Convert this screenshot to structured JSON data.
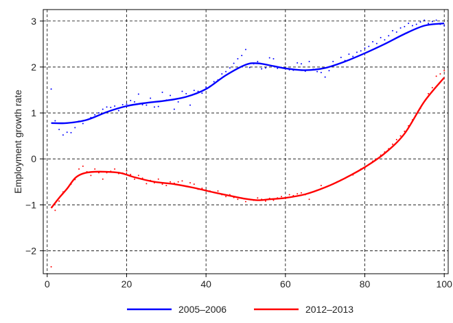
{
  "chart_data": {
    "type": "line",
    "title": "",
    "xlabel": "",
    "ylabel": "Employment growth rate",
    "xlim": [
      -1,
      101
    ],
    "ylim": [
      -2.5,
      3.25
    ],
    "x_ticks": [
      0,
      20,
      40,
      60,
      80,
      100
    ],
    "y_ticks": [
      -2,
      -1,
      0,
      1,
      2,
      3
    ],
    "grid": true,
    "legend_position": "bottom",
    "series": [
      {
        "name": "2005–2006",
        "color": "#0000ff",
        "smooth": [
          [
            1,
            0.78
          ],
          [
            5,
            0.78
          ],
          [
            10,
            0.85
          ],
          [
            15,
            1.02
          ],
          [
            20,
            1.15
          ],
          [
            25,
            1.22
          ],
          [
            30,
            1.27
          ],
          [
            35,
            1.35
          ],
          [
            40,
            1.52
          ],
          [
            45,
            1.82
          ],
          [
            50,
            2.05
          ],
          [
            53,
            2.08
          ],
          [
            57,
            2.02
          ],
          [
            60,
            1.97
          ],
          [
            65,
            1.93
          ],
          [
            70,
            1.98
          ],
          [
            75,
            2.12
          ],
          [
            80,
            2.3
          ],
          [
            85,
            2.5
          ],
          [
            90,
            2.72
          ],
          [
            95,
            2.9
          ],
          [
            100,
            2.95
          ]
        ],
        "points": [
          [
            1,
            1.52
          ],
          [
            2,
            0.83
          ],
          [
            3,
            0.64
          ],
          [
            4,
            0.52
          ],
          [
            5,
            0.58
          ],
          [
            6,
            0.57
          ],
          [
            7,
            0.68
          ],
          [
            8,
            0.82
          ],
          [
            9,
            0.77
          ],
          [
            10,
            0.85
          ],
          [
            11,
            0.9
          ],
          [
            12,
            0.96
          ],
          [
            13,
            1.0
          ],
          [
            14,
            1.08
          ],
          [
            15,
            1.13
          ],
          [
            16,
            1.12
          ],
          [
            17,
            1.15
          ],
          [
            18,
            1.05
          ],
          [
            19,
            1.18
          ],
          [
            20,
            1.19
          ],
          [
            21,
            1.27
          ],
          [
            22,
            1.24
          ],
          [
            23,
            1.41
          ],
          [
            24,
            1.18
          ],
          [
            25,
            1.17
          ],
          [
            26,
            1.32
          ],
          [
            27,
            1.13
          ],
          [
            28,
            1.14
          ],
          [
            29,
            1.45
          ],
          [
            30,
            1.28
          ],
          [
            31,
            1.38
          ],
          [
            32,
            1.08
          ],
          [
            33,
            1.24
          ],
          [
            34,
            1.47
          ],
          [
            35,
            1.42
          ],
          [
            36,
            1.17
          ],
          [
            37,
            1.49
          ],
          [
            38,
            1.47
          ],
          [
            39,
            1.43
          ],
          [
            40,
            1.56
          ],
          [
            41,
            1.58
          ],
          [
            42,
            1.68
          ],
          [
            43,
            1.72
          ],
          [
            44,
            1.85
          ],
          [
            45,
            1.9
          ],
          [
            46,
            1.98
          ],
          [
            47,
            2.08
          ],
          [
            48,
            2.18
          ],
          [
            49,
            2.25
          ],
          [
            50,
            2.38
          ],
          [
            51,
            1.99
          ],
          [
            52,
            2.07
          ],
          [
            53,
            2.12
          ],
          [
            54,
            1.96
          ],
          [
            55,
            1.98
          ],
          [
            56,
            2.2
          ],
          [
            57,
            2.18
          ],
          [
            58,
            1.97
          ],
          [
            59,
            1.99
          ],
          [
            60,
            1.96
          ],
          [
            61,
            1.94
          ],
          [
            62,
            1.93
          ],
          [
            63,
            2.09
          ],
          [
            64,
            2.07
          ],
          [
            65,
            1.91
          ],
          [
            66,
            2.12
          ],
          [
            67,
            1.95
          ],
          [
            68,
            1.9
          ],
          [
            69,
            1.88
          ],
          [
            70,
            1.78
          ],
          [
            71,
            1.92
          ],
          [
            72,
            2.12
          ],
          [
            73,
            2.05
          ],
          [
            74,
            2.21
          ],
          [
            75,
            2.14
          ],
          [
            76,
            2.28
          ],
          [
            77,
            2.23
          ],
          [
            78,
            2.32
          ],
          [
            79,
            2.35
          ],
          [
            80,
            2.41
          ],
          [
            81,
            2.45
          ],
          [
            82,
            2.55
          ],
          [
            83,
            2.51
          ],
          [
            84,
            2.64
          ],
          [
            85,
            2.59
          ],
          [
            86,
            2.68
          ],
          [
            87,
            2.79
          ],
          [
            88,
            2.76
          ],
          [
            89,
            2.85
          ],
          [
            90,
            2.88
          ],
          [
            91,
            2.95
          ],
          [
            92,
            2.9
          ],
          [
            93,
            2.93
          ],
          [
            94,
            2.98
          ],
          [
            95,
            3.02
          ],
          [
            96,
            2.95
          ],
          [
            97,
            2.99
          ],
          [
            98,
            3.02
          ],
          [
            99,
            2.93
          ],
          [
            100,
            2.9
          ]
        ]
      },
      {
        "name": "2012–2013",
        "color": "#ff0000",
        "smooth": [
          [
            1,
            -1.07
          ],
          [
            3,
            -0.85
          ],
          [
            5,
            -0.65
          ],
          [
            7,
            -0.42
          ],
          [
            9,
            -0.32
          ],
          [
            12,
            -0.28
          ],
          [
            18,
            -0.3
          ],
          [
            22,
            -0.4
          ],
          [
            27,
            -0.5
          ],
          [
            32,
            -0.55
          ],
          [
            37,
            -0.63
          ],
          [
            42,
            -0.73
          ],
          [
            47,
            -0.82
          ],
          [
            50,
            -0.87
          ],
          [
            53,
            -0.9
          ],
          [
            56,
            -0.88
          ],
          [
            60,
            -0.85
          ],
          [
            65,
            -0.77
          ],
          [
            70,
            -0.62
          ],
          [
            75,
            -0.42
          ],
          [
            80,
            -0.18
          ],
          [
            85,
            0.12
          ],
          [
            90,
            0.55
          ],
          [
            95,
            1.25
          ],
          [
            100,
            1.77
          ]
        ],
        "points": [
          [
            1,
            -2.35
          ],
          [
            2,
            -1.12
          ],
          [
            3,
            -0.92
          ],
          [
            4,
            -0.72
          ],
          [
            5,
            -0.65
          ],
          [
            6,
            -0.55
          ],
          [
            7,
            -0.45
          ],
          [
            8,
            -0.22
          ],
          [
            9,
            -0.16
          ],
          [
            10,
            -0.28
          ],
          [
            11,
            -0.36
          ],
          [
            12,
            -0.22
          ],
          [
            13,
            -0.3
          ],
          [
            14,
            -0.44
          ],
          [
            15,
            -0.3
          ],
          [
            16,
            -0.27
          ],
          [
            17,
            -0.22
          ],
          [
            18,
            -0.32
          ],
          [
            19,
            -0.31
          ],
          [
            20,
            -0.26
          ],
          [
            21,
            -0.34
          ],
          [
            22,
            -0.44
          ],
          [
            23,
            -0.36
          ],
          [
            24,
            -0.42
          ],
          [
            25,
            -0.54
          ],
          [
            26,
            -0.47
          ],
          [
            27,
            -0.52
          ],
          [
            28,
            -0.44
          ],
          [
            29,
            -0.55
          ],
          [
            30,
            -0.58
          ],
          [
            31,
            -0.5
          ],
          [
            32,
            -0.53
          ],
          [
            33,
            -0.5
          ],
          [
            34,
            -0.48
          ],
          [
            35,
            -0.6
          ],
          [
            36,
            -0.52
          ],
          [
            37,
            -0.55
          ],
          [
            38,
            -0.66
          ],
          [
            39,
            -0.64
          ],
          [
            40,
            -0.68
          ],
          [
            41,
            -0.7
          ],
          [
            42,
            -0.73
          ],
          [
            43,
            -0.7
          ],
          [
            44,
            -0.78
          ],
          [
            45,
            -0.82
          ],
          [
            46,
            -0.78
          ],
          [
            47,
            -0.84
          ],
          [
            48,
            -0.88
          ],
          [
            49,
            -0.85
          ],
          [
            50,
            -0.93
          ],
          [
            51,
            -0.88
          ],
          [
            52,
            -0.9
          ],
          [
            53,
            -0.85
          ],
          [
            54,
            -0.88
          ],
          [
            55,
            -0.92
          ],
          [
            56,
            -0.86
          ],
          [
            57,
            -0.9
          ],
          [
            58,
            -0.85
          ],
          [
            59,
            -0.82
          ],
          [
            60,
            -0.86
          ],
          [
            61,
            -0.78
          ],
          [
            62,
            -0.8
          ],
          [
            63,
            -0.76
          ],
          [
            64,
            -0.74
          ],
          [
            65,
            -0.78
          ],
          [
            66,
            -0.88
          ],
          [
            67,
            -0.72
          ],
          [
            68,
            -0.68
          ],
          [
            69,
            -0.58
          ],
          [
            70,
            -0.62
          ],
          [
            71,
            -0.58
          ],
          [
            72,
            -0.55
          ],
          [
            73,
            -0.5
          ],
          [
            74,
            -0.46
          ],
          [
            75,
            -0.42
          ],
          [
            76,
            -0.38
          ],
          [
            77,
            -0.35
          ],
          [
            78,
            -0.28
          ],
          [
            79,
            -0.22
          ],
          [
            80,
            -0.2
          ],
          [
            81,
            -0.12
          ],
          [
            82,
            -0.05
          ],
          [
            83,
            0.0
          ],
          [
            84,
            0.08
          ],
          [
            85,
            0.15
          ],
          [
            86,
            0.22
          ],
          [
            87,
            0.32
          ],
          [
            88,
            0.42
          ],
          [
            89,
            0.5
          ],
          [
            90,
            0.6
          ],
          [
            91,
            0.72
          ],
          [
            92,
            0.85
          ],
          [
            93,
            0.98
          ],
          [
            94,
            1.1
          ],
          [
            95,
            1.25
          ],
          [
            96,
            1.42
          ],
          [
            97,
            1.55
          ],
          [
            98,
            1.8
          ],
          [
            99,
            1.85
          ],
          [
            100,
            1.92
          ]
        ]
      }
    ]
  }
}
